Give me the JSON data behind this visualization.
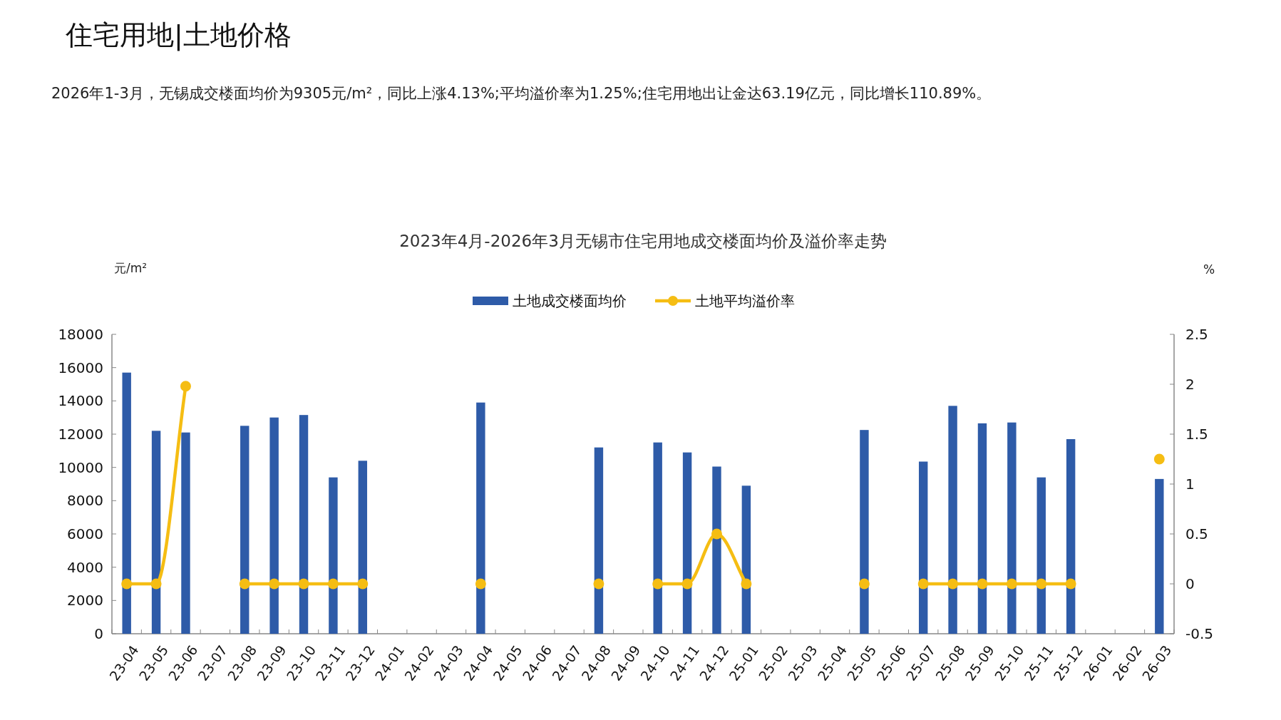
{
  "chart_data": {
    "type": "bar",
    "title": "2023年4月-2026年3月无锡市住宅用地成交楼面均价及溢价率走势",
    "annotations": [
      "住宅用地|土地价格",
      "2026年1-3月，无锡成交楼面均价为9305元/m²，同比上涨4.13%;平均溢价率为1.25%;住宅用地出让金达63.19亿元，同比增长110.89%。"
    ],
    "ylabel": "元/m²",
    "y2label": "%",
    "categories": [
      "23-04",
      "23-05",
      "23-06",
      "23-07",
      "23-08",
      "23-09",
      "23-10",
      "23-11",
      "23-12",
      "24-01",
      "24-02",
      "24-03",
      "24-04",
      "24-05",
      "24-06",
      "24-07",
      "24-08",
      "24-09",
      "24-10",
      "24-11",
      "24-12",
      "25-01",
      "25-02",
      "25-03",
      "25-04",
      "25-05",
      "25-06",
      "25-07",
      "25-08",
      "25-09",
      "25-10",
      "25-11",
      "25-12",
      "26-01",
      "26-02",
      "26-03"
    ],
    "series": [
      {
        "name": "土地成交楼面均价",
        "color": "#2e5ba8",
        "values": [
          15700,
          12200,
          12100,
          null,
          12500,
          13000,
          13150,
          9400,
          10400,
          null,
          null,
          null,
          13900,
          null,
          null,
          null,
          11200,
          null,
          11500,
          10900,
          10050,
          8900,
          null,
          null,
          null,
          12250,
          null,
          10350,
          13700,
          12650,
          12700,
          9400,
          11700,
          null,
          null,
          9305
        ]
      },
      {
        "name": "土地平均溢价率",
        "type": "line",
        "axis": "y2",
        "color": "#f5bd13",
        "marker": "circle",
        "values": [
          0,
          0,
          1.98,
          null,
          0,
          0,
          0,
          0,
          0,
          null,
          null,
          null,
          0,
          null,
          null,
          null,
          0,
          null,
          0,
          0,
          0.5,
          0,
          null,
          null,
          null,
          0,
          null,
          0,
          0,
          0,
          0,
          0,
          0,
          null,
          null,
          1.25
        ]
      }
    ],
    "ylim": [
      0,
      18000
    ],
    "yticks": [
      0,
      2000,
      4000,
      6000,
      8000,
      10000,
      12000,
      14000,
      16000,
      18000
    ],
    "y2lim": [
      -0.5,
      2.5
    ],
    "y2ticks": [
      -0.5,
      0,
      0.5,
      1,
      1.5,
      2,
      2.5
    ],
    "legend": "top",
    "grid": false
  }
}
